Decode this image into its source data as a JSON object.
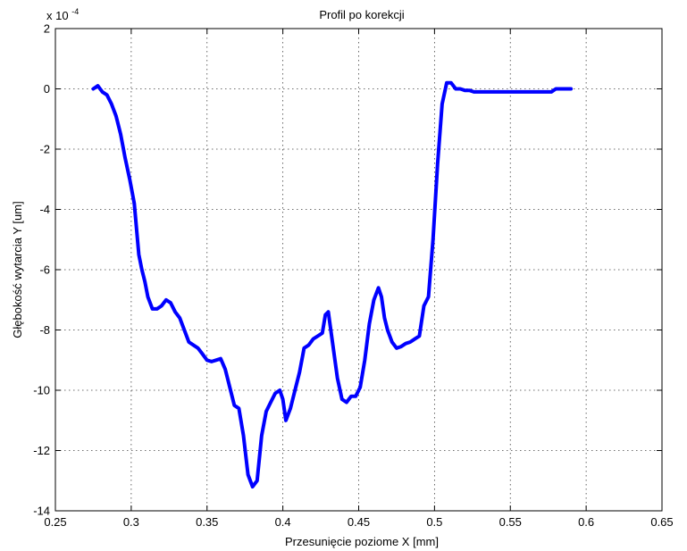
{
  "chart_data": {
    "type": "line",
    "title": "Profil po korekcji",
    "xlabel": "Przesunięcie poziome X [mm]",
    "ylabel": "Głębokość wytarcia Y [um]",
    "y_multiplier_base": "x 10",
    "y_multiplier_exp": "-4",
    "xlim": [
      0.25,
      0.65
    ],
    "ylim": [
      -14,
      2
    ],
    "xticks": [
      0.25,
      0.3,
      0.35,
      0.4,
      0.45,
      0.5,
      0.55,
      0.6,
      0.65
    ],
    "xtick_labels": [
      "0.25",
      "0.3",
      "0.35",
      "0.4",
      "0.45",
      "0.5",
      "0.55",
      "0.6",
      "0.65"
    ],
    "yticks": [
      -14,
      -12,
      -10,
      -8,
      -6,
      -4,
      -2,
      0,
      2
    ],
    "ytick_labels": [
      "-14",
      "-12",
      "-10",
      "-8",
      "-6",
      "-4",
      "-2",
      "0",
      "2"
    ],
    "grid": true,
    "line_color": "#0000ff",
    "series": [
      {
        "x": [
          0.275,
          0.278,
          0.281,
          0.284,
          0.287,
          0.29,
          0.293,
          0.296,
          0.299,
          0.302,
          0.305,
          0.307,
          0.309,
          0.311,
          0.314,
          0.317,
          0.32,
          0.323,
          0.326,
          0.329,
          0.332,
          0.335,
          0.338,
          0.341,
          0.344,
          0.347,
          0.35,
          0.353,
          0.356,
          0.359,
          0.362,
          0.365,
          0.368,
          0.371,
          0.374,
          0.377,
          0.38,
          0.383,
          0.386,
          0.389,
          0.392,
          0.395,
          0.398,
          0.4,
          0.402,
          0.405,
          0.408,
          0.411,
          0.414,
          0.417,
          0.42,
          0.423,
          0.426,
          0.428,
          0.43,
          0.433,
          0.436,
          0.439,
          0.442,
          0.445,
          0.448,
          0.451,
          0.454,
          0.457,
          0.46,
          0.463,
          0.465,
          0.467,
          0.469,
          0.472,
          0.475,
          0.478,
          0.481,
          0.484,
          0.487,
          0.49,
          0.493,
          0.496,
          0.499,
          0.502,
          0.505,
          0.508,
          0.511,
          0.514,
          0.517,
          0.52,
          0.523,
          0.526,
          0.529,
          0.532,
          0.535,
          0.538,
          0.541,
          0.544,
          0.547,
          0.55,
          0.553,
          0.556,
          0.559,
          0.562,
          0.565,
          0.568,
          0.571,
          0.574,
          0.577,
          0.58,
          0.583,
          0.586,
          0.589,
          0.59
        ],
        "y": [
          0.0,
          0.1,
          -0.1,
          -0.2,
          -0.5,
          -0.9,
          -1.5,
          -2.3,
          -3.0,
          -3.8,
          -5.5,
          -6.0,
          -6.4,
          -6.9,
          -7.3,
          -7.3,
          -7.2,
          -7.0,
          -7.1,
          -7.4,
          -7.6,
          -8.0,
          -8.4,
          -8.5,
          -8.6,
          -8.8,
          -9.0,
          -9.05,
          -9.0,
          -8.95,
          -9.3,
          -9.9,
          -10.5,
          -10.6,
          -11.5,
          -12.8,
          -13.2,
          -13.0,
          -11.5,
          -10.7,
          -10.4,
          -10.1,
          -10.0,
          -10.3,
          -11.0,
          -10.6,
          -10.0,
          -9.4,
          -8.6,
          -8.5,
          -8.3,
          -8.2,
          -8.1,
          -7.5,
          -7.4,
          -8.5,
          -9.6,
          -10.3,
          -10.4,
          -10.2,
          -10.2,
          -9.9,
          -9.0,
          -7.8,
          -7.0,
          -6.6,
          -6.9,
          -7.6,
          -8.0,
          -8.4,
          -8.6,
          -8.55,
          -8.45,
          -8.4,
          -8.3,
          -8.2,
          -7.2,
          -6.9,
          -5.0,
          -2.5,
          -0.5,
          0.2,
          0.2,
          0.0,
          0.0,
          -0.05,
          -0.05,
          -0.1,
          -0.1,
          -0.1,
          -0.1,
          -0.1,
          -0.1,
          -0.1,
          -0.1,
          -0.1,
          -0.1,
          -0.1,
          -0.1,
          -0.1,
          -0.1,
          -0.1,
          -0.1,
          -0.1,
          -0.1,
          0.0,
          0.0,
          0.0,
          0.0,
          0.0
        ]
      }
    ]
  }
}
